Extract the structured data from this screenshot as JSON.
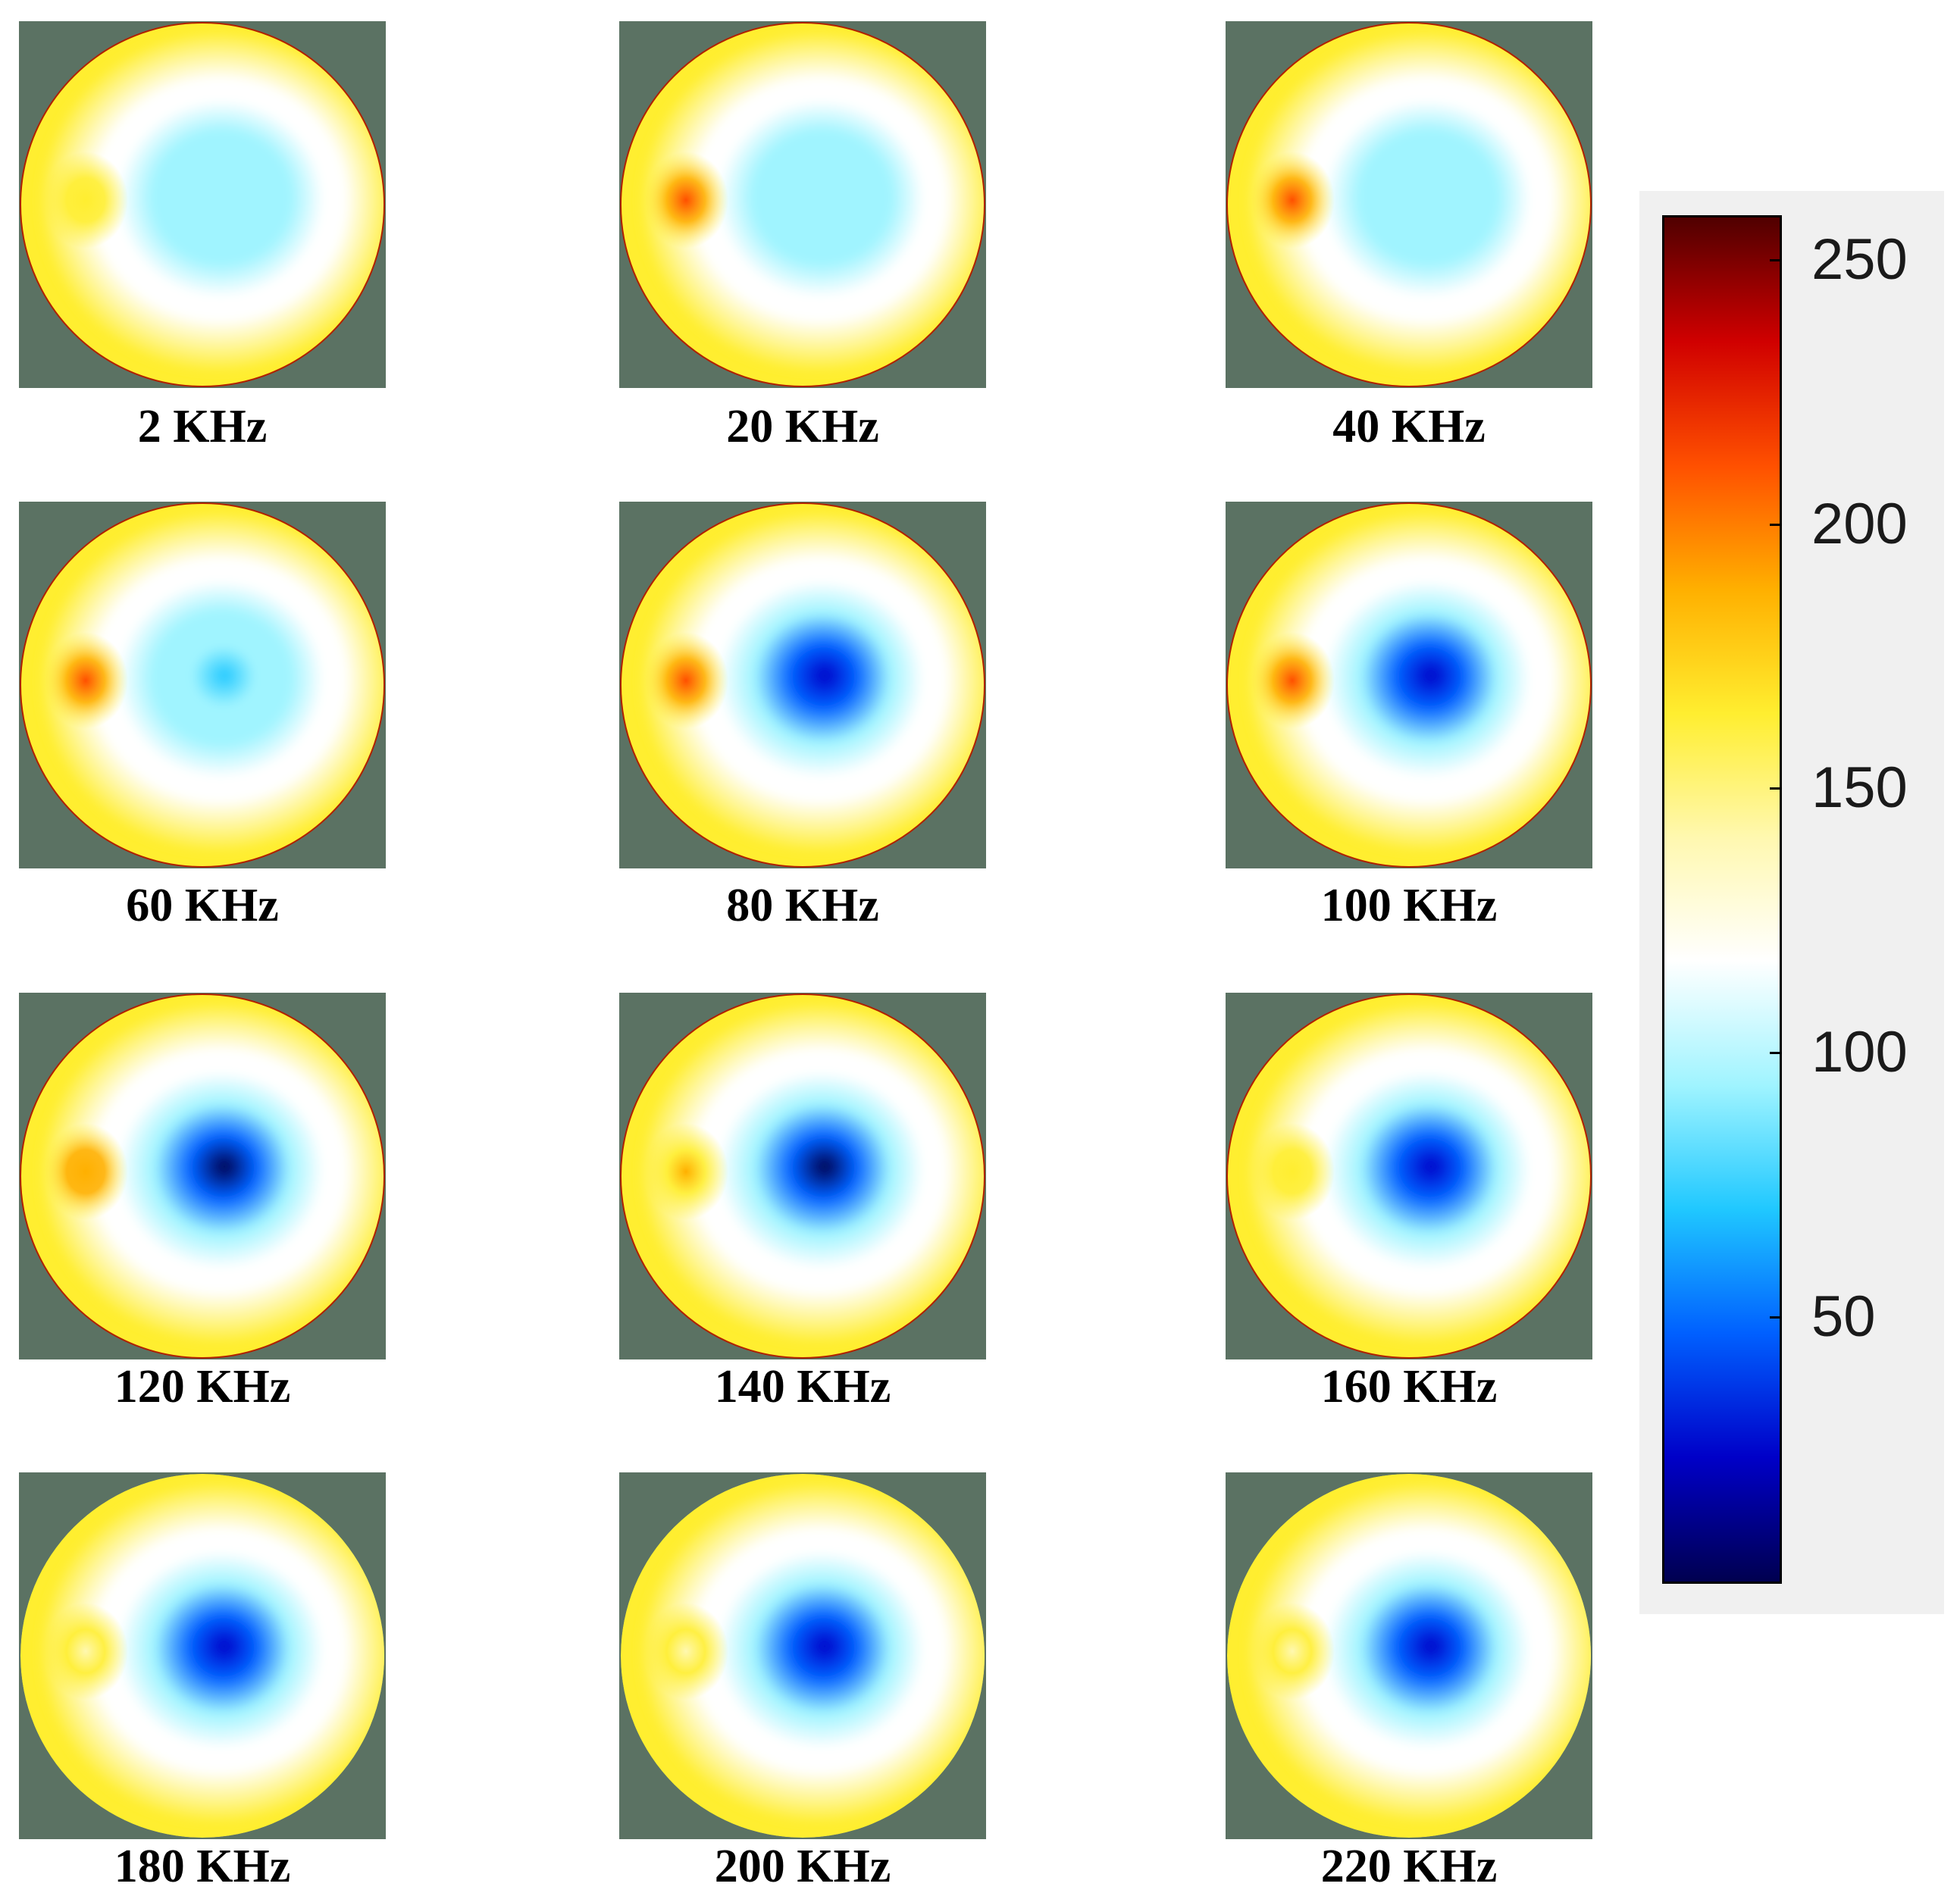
{
  "colors": {
    "background_fill": "#5b7263",
    "colormap": [
      "#000050",
      "#0000c8",
      "#0060ff",
      "#20c8ff",
      "#a0f4ff",
      "#ffffff",
      "#fff8b0",
      "#ffee30",
      "#ffb000",
      "#ff5000",
      "#d00000",
      "#500000"
    ]
  },
  "panels": [
    {
      "label": "2 KHz",
      "center_value": 92,
      "left_spot_value": 172
    },
    {
      "label": "20 KHz",
      "center_value": 92,
      "left_spot_value": 205
    },
    {
      "label": "40 KHz",
      "center_value": 88,
      "left_spot_value": 215
    },
    {
      "label": "60 KHz",
      "center_value": 78,
      "left_spot_value": 222
    },
    {
      "label": "80 KHz",
      "center_value": 30,
      "left_spot_value": 218
    },
    {
      "label": "100 KHz",
      "center_value": 25,
      "left_spot_value": 212
    },
    {
      "label": "120 KHz",
      "center_value": 10,
      "left_spot_value": 195
    },
    {
      "label": "140 KHz",
      "center_value": 10,
      "left_spot_value": 178
    },
    {
      "label": "160 KHz",
      "center_value": 12,
      "left_spot_value": 158
    },
    {
      "label": "180 KHz",
      "center_value": 12,
      "left_spot_value": 150
    },
    {
      "label": "200 KHz",
      "center_value": 12,
      "left_spot_value": 148
    },
    {
      "label": "220 KHz",
      "center_value": 15,
      "left_spot_value": 146
    }
  ],
  "colorbar": {
    "min": 0,
    "max": 258,
    "ticks": [
      {
        "value": 50,
        "label": "50"
      },
      {
        "value": 100,
        "label": "100"
      },
      {
        "value": 150,
        "label": "150"
      },
      {
        "value": 200,
        "label": "200"
      },
      {
        "value": 250,
        "label": "250"
      }
    ]
  }
}
